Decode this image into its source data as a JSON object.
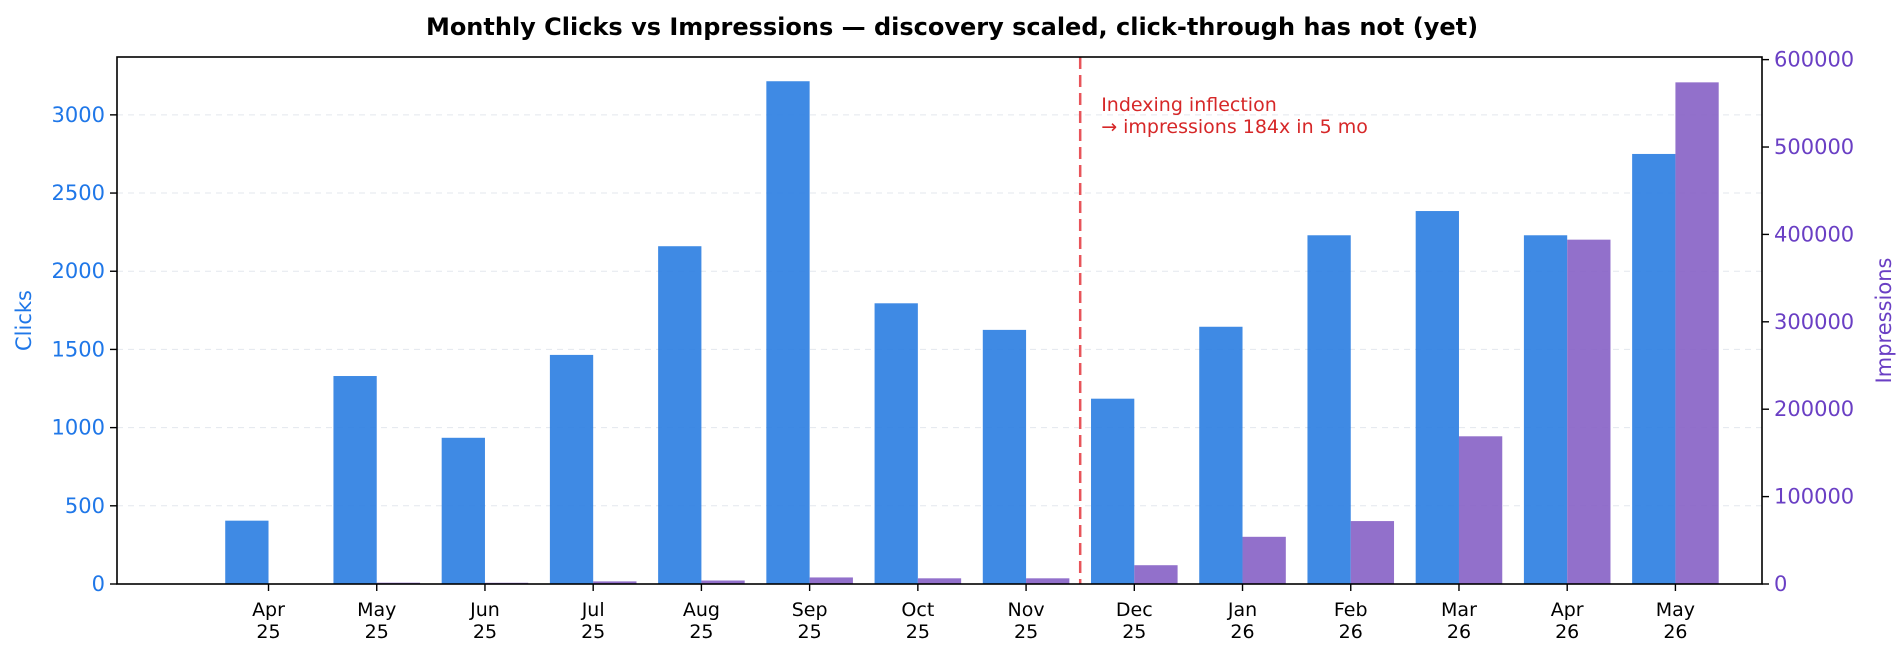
{
  "chart_data": {
    "type": "bar",
    "title": "Monthly Clicks vs Impressions — discovery scaled, click-through has not (yet)",
    "categories": [
      "Apr\n25",
      "May\n25",
      "Jun\n25",
      "Jul\n25",
      "Aug\n25",
      "Sep\n25",
      "Oct\n25",
      "Nov\n25",
      "Dec\n25",
      "Jan\n26",
      "Feb\n26",
      "Mar\n26",
      "Apr\n26",
      "May\n26"
    ],
    "series": [
      {
        "name": "Clicks",
        "axis": "left",
        "color": "#2a7de1",
        "values": [
          405,
          1330,
          935,
          1465,
          2160,
          3215,
          1795,
          1625,
          1185,
          1645,
          2230,
          2385,
          2230,
          2750
        ]
      },
      {
        "name": "Impressions",
        "axis": "right",
        "color": "#8660c5",
        "values": [
          0,
          1500,
          1400,
          3000,
          4000,
          7500,
          6500,
          6500,
          21500,
          54000,
          72000,
          169000,
          394000,
          574000
        ]
      }
    ],
    "ylabel": "Clicks",
    "ylabel_right": "Impressions",
    "ylim": [
      0,
      3370
    ],
    "ylim_right": [
      0,
      603000
    ],
    "yticks": [
      0,
      500,
      1000,
      1500,
      2000,
      2500,
      3000
    ],
    "yticks_right": [
      0,
      100000,
      200000,
      300000,
      400000,
      500000,
      600000
    ],
    "grid": "horizontal dashed",
    "annotation": {
      "lines": [
        "Indexing inflection",
        "→ impressions 184x in 5 mo"
      ],
      "between_categories": [
        "Nov\n25",
        "Dec\n25"
      ],
      "color": "#d62728"
    },
    "colors": {
      "left_axis": "#1f77e8",
      "right_axis": "#6a3fc4",
      "annotation": "#d62728",
      "marker_line": "#e8545a"
    }
  }
}
